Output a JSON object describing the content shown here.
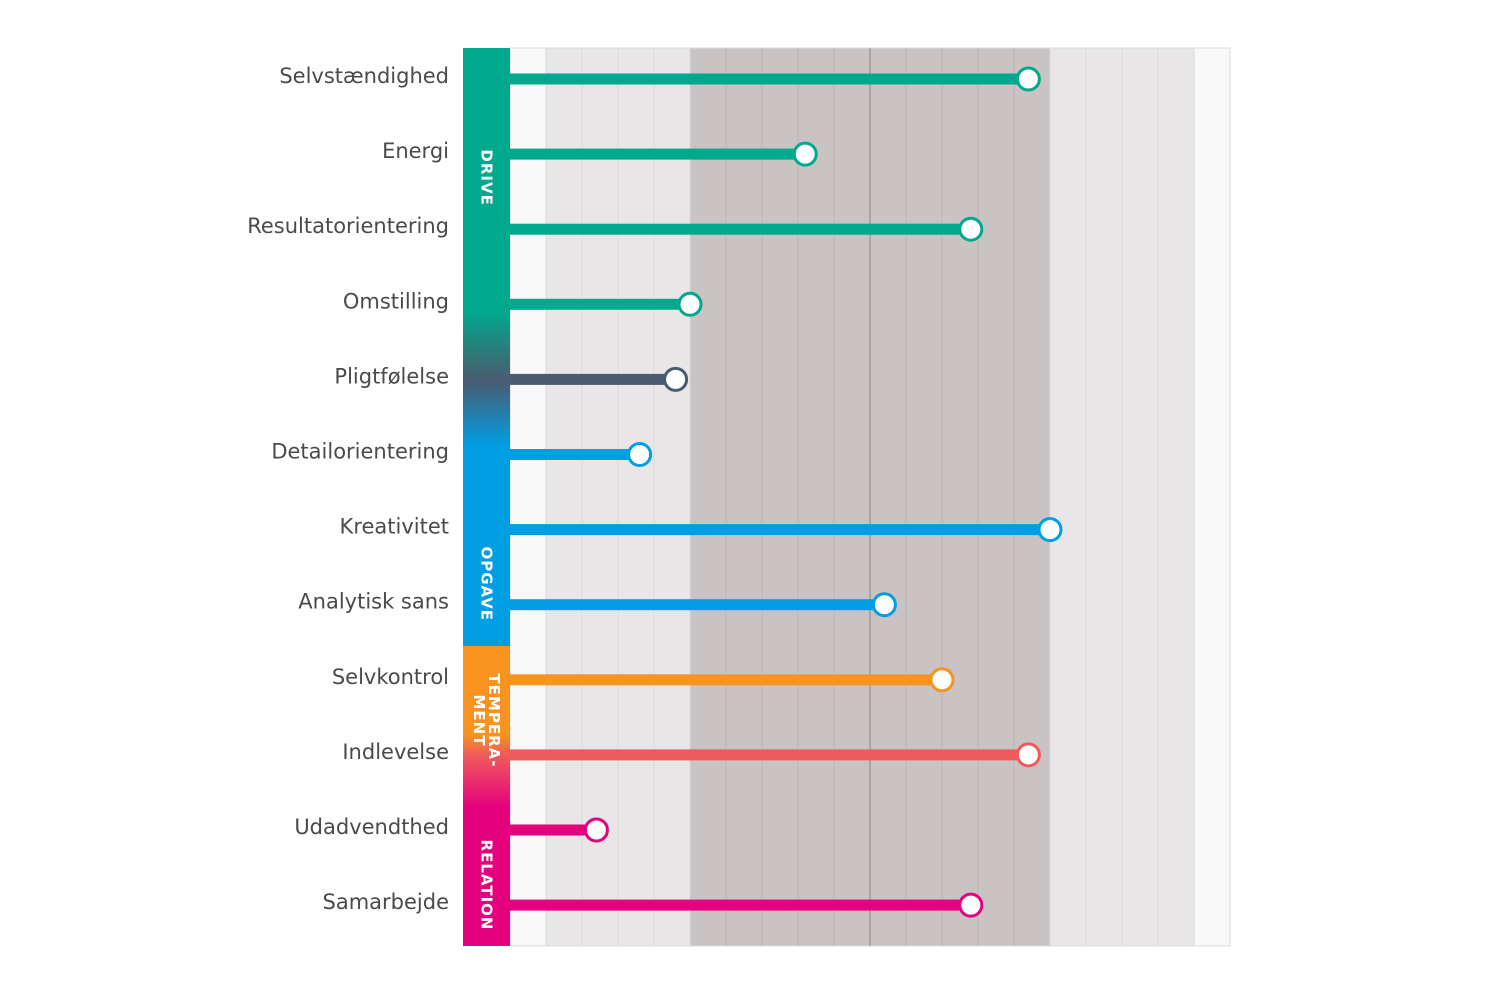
{
  "chart_data": {
    "type": "bar",
    "orientation": "horizontal",
    "style": "lollipop",
    "categories": [
      "Selvstændighed",
      "Energi",
      "Resultatorientering",
      "Omstilling",
      "Pligtfølelse",
      "Detailorientering",
      "Kreativitet",
      "Analytisk sans",
      "Selvkontrol",
      "Indlevelse",
      "Udadvendthed",
      "Samarbejde"
    ],
    "values": [
      7.2,
      4.1,
      6.4,
      2.5,
      2.3,
      1.8,
      7.5,
      5.2,
      6.0,
      7.2,
      1.2,
      6.4
    ],
    "xlim": [
      0,
      10
    ],
    "bands": [
      {
        "from": 0,
        "to": 0.5,
        "color": "#f8f8f8"
      },
      {
        "from": 0.5,
        "to": 2.5,
        "color": "#e8e6e7"
      },
      {
        "from": 2.5,
        "to": 7.5,
        "color": "#c9c3c3"
      },
      {
        "from": 7.5,
        "to": 9.5,
        "color": "#e8e6e7"
      },
      {
        "from": 9.5,
        "to": 10,
        "color": "#f8f8f8"
      }
    ],
    "center_line": 5,
    "groups": [
      {
        "label": "DRIVE",
        "color": "#00a88d",
        "items": [
          "Selvstændighed",
          "Energi",
          "Resultatorientering",
          "Omstilling"
        ]
      },
      {
        "label": "OPGAVE",
        "color": "#009ee3",
        "items": [
          "Detailorientering",
          "Kreativitet",
          "Analytisk sans"
        ]
      },
      {
        "label_lines": [
          "TEMPERA-",
          "MENT"
        ],
        "color": "#f7931e",
        "items": [
          "Selvkontrol",
          "Indlevelse"
        ]
      },
      {
        "label": "RELATION",
        "color": "#e5007e",
        "items": [
          "Udadvendthed",
          "Samarbejde"
        ]
      }
    ],
    "bar_colors": [
      "#00a88d",
      "#00a88d",
      "#00a88d",
      "#00a88d",
      "#4a5b70",
      "#009ee3",
      "#009ee3",
      "#009ee3",
      "#f7931e",
      "#ef5b5b",
      "#e5007e",
      "#e5007e"
    ],
    "grid": true,
    "legend": "none"
  }
}
